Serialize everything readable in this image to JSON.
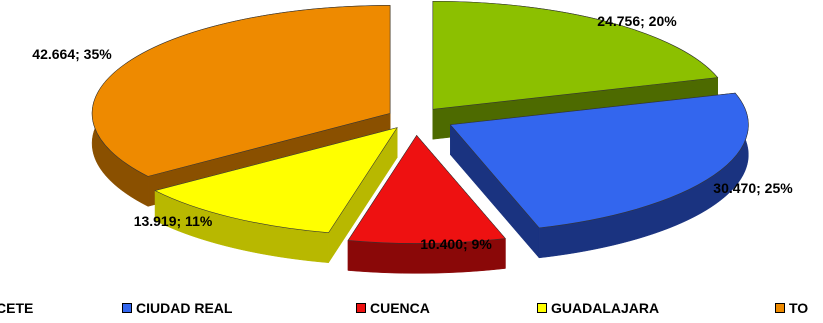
{
  "chart_data": {
    "type": "pie",
    "style": "3d-exploded",
    "slices": [
      {
        "name": "ALBACETE",
        "value": 24756,
        "percent": 20,
        "label": "24.756; 20%",
        "color": "#8cc000",
        "dark": "#4d6a00"
      },
      {
        "name": "CIUDAD REAL",
        "value": 30470,
        "percent": 25,
        "label": "30.470; 25%",
        "color": "#3366ee",
        "dark": "#1a3380"
      },
      {
        "name": "CUENCA",
        "value": 10400,
        "percent": 9,
        "label": "10.400; 9%",
        "color": "#ee1111",
        "dark": "#8a0808"
      },
      {
        "name": "GUADALAJARA",
        "value": 13919,
        "percent": 11,
        "label": "13.919; 11%",
        "color": "#ffff00",
        "dark": "#b8b800"
      },
      {
        "name": "TOLEDO",
        "value": 42664,
        "percent": 35,
        "label": "42.664; 35%",
        "color": "#ee8a00",
        "dark": "#8a5000"
      }
    ],
    "legend_position": "bottom",
    "legend_text": [
      "CETE",
      "CIUDAD REAL",
      "CUENCA",
      "GUADALAJARA",
      "TO"
    ]
  }
}
